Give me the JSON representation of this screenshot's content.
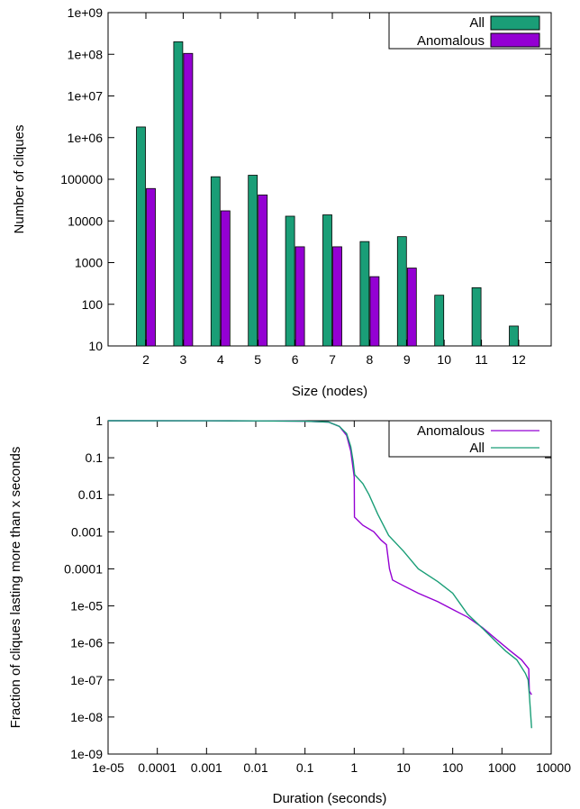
{
  "colors": {
    "all": "#1a9e77",
    "anomalous": "#9400d3"
  },
  "chart_data": [
    {
      "type": "bar",
      "scale": "log",
      "xlabel": "Size (nodes)",
      "ylabel": "Number of cliques",
      "ylim": [
        10,
        1000000000
      ],
      "yticks": [
        "10",
        "100",
        "1000",
        "10000",
        "100000",
        "1e+06",
        "1e+07",
        "1e+08",
        "1e+09"
      ],
      "categories": [
        "2",
        "3",
        "4",
        "5",
        "6",
        "7",
        "8",
        "9",
        "10",
        "11",
        "12"
      ],
      "legend_position": "top-right",
      "series": [
        {
          "name": "All",
          "values": [
            1800000,
            200000000,
            115000,
            125000,
            13000,
            14000,
            3200,
            4200,
            165,
            250,
            30
          ]
        },
        {
          "name": "Anomalous",
          "values": [
            60000,
            105000000,
            17500,
            42000,
            2400,
            2400,
            460,
            740,
            null,
            null,
            null
          ]
        }
      ]
    },
    {
      "type": "line",
      "scale": "log-log",
      "xlabel": "Duration (seconds)",
      "ylabel": "Fraction of cliques lasting more than x seconds",
      "xlim": [
        1e-05,
        10000
      ],
      "ylim": [
        1e-09,
        1
      ],
      "xticks": [
        "1e-05",
        "0.0001",
        "0.001",
        "0.01",
        "0.1",
        "1",
        "10",
        "100",
        "1000",
        "10000"
      ],
      "yticks": [
        "1e-09",
        "1e-08",
        "1e-07",
        "1e-06",
        "1e-05",
        "0.0001",
        "0.001",
        "0.01",
        "0.1",
        "1"
      ],
      "legend_position": "top-right",
      "series": [
        {
          "name": "Anomalous",
          "points": [
            [
              1e-05,
              1
            ],
            [
              0.001,
              0.995
            ],
            [
              0.01,
              0.99
            ],
            [
              0.1,
              0.97
            ],
            [
              0.3,
              0.92
            ],
            [
              0.5,
              0.7
            ],
            [
              0.7,
              0.4
            ],
            [
              0.85,
              0.15
            ],
            [
              0.95,
              0.05
            ],
            [
              1,
              0.03
            ],
            [
              1.01,
              0.0025
            ],
            [
              1.5,
              0.0015
            ],
            [
              2.5,
              0.001
            ],
            [
              3.5,
              0.0006
            ],
            [
              4.5,
              0.00045
            ],
            [
              5.2,
              0.0001
            ],
            [
              6,
              5e-05
            ],
            [
              10,
              3.5e-05
            ],
            [
              20,
              2.2e-05
            ],
            [
              50,
              1.3e-05
            ],
            [
              100,
              8e-06
            ],
            [
              200,
              5e-06
            ],
            [
              400,
              2.6e-06
            ],
            [
              800,
              1.2e-06
            ],
            [
              1500,
              6e-07
            ],
            [
              2500,
              3.5e-07
            ],
            [
              3500,
              2e-07
            ],
            [
              3600,
              5e-08
            ],
            [
              4000,
              4e-08
            ]
          ]
        },
        {
          "name": "All",
          "points": [
            [
              1e-05,
              1
            ],
            [
              0.001,
              0.995
            ],
            [
              0.01,
              0.99
            ],
            [
              0.1,
              0.97
            ],
            [
              0.3,
              0.92
            ],
            [
              0.5,
              0.7
            ],
            [
              0.7,
              0.45
            ],
            [
              0.85,
              0.2
            ],
            [
              0.95,
              0.08
            ],
            [
              1.02,
              0.035
            ],
            [
              1.5,
              0.02
            ],
            [
              2,
              0.01
            ],
            [
              3,
              0.003
            ],
            [
              5,
              0.0008
            ],
            [
              10,
              0.0003
            ],
            [
              20,
              0.0001
            ],
            [
              50,
              4.5e-05
            ],
            [
              100,
              2.2e-05
            ],
            [
              200,
              6e-06
            ],
            [
              400,
              2.5e-06
            ],
            [
              800,
              1e-06
            ],
            [
              1200,
              6e-07
            ],
            [
              2000,
              3.5e-07
            ],
            [
              3000,
              1.5e-07
            ],
            [
              3400,
              1e-07
            ],
            [
              3600,
              4e-08
            ],
            [
              4000,
              5e-09
            ]
          ]
        }
      ]
    }
  ]
}
